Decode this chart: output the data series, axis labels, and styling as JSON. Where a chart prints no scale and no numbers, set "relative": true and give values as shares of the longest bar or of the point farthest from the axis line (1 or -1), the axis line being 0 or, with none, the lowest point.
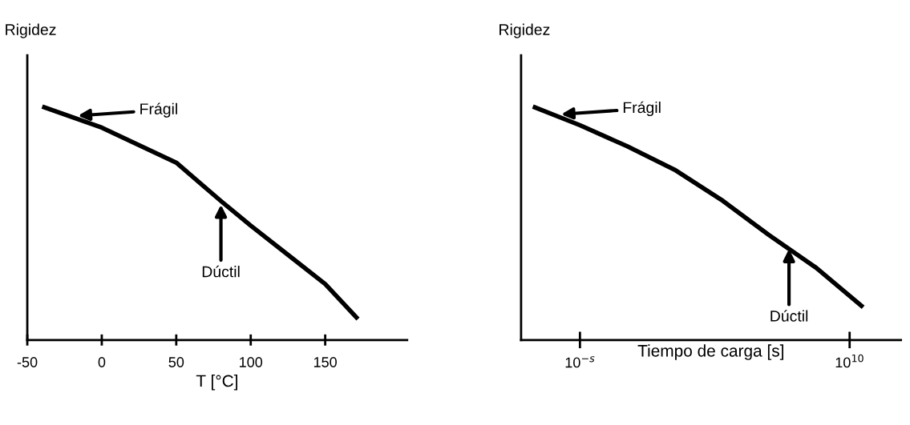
{
  "chart_data": [
    {
      "type": "line",
      "ylabel": "Rigidez",
      "xlabel": "T [°C]",
      "relative": true,
      "tick_labels": "x",
      "xlim": [
        -50,
        205
      ],
      "xticks": [
        -50,
        0,
        50,
        100,
        150
      ],
      "series": [
        {
          "color": "#000000",
          "x": [
            -40,
            0,
            50,
            81,
            100,
            128,
            150,
            172
          ],
          "values": [
            1,
            0.91,
            0.76,
            0.59,
            0.49,
            0.35,
            0.24,
            0.09
          ]
        }
      ],
      "annotations": [
        "Frágil",
        {
          "text": "Dúctil",
          "x": 80,
          "y": 0.58
        }
      ]
    },
    {
      "type": "line",
      "ylabel": "Rigidez",
      "xlabel": "Tiempo de carga [s]",
      "relative": true,
      "tick_labels": false,
      "categories": [
        null,
        null,
        null,
        null,
        null,
        null,
        null,
        null
      ],
      "series": [
        {
          "color": "#000000",
          "values": [
            1,
            0.92,
            0.83,
            0.73,
            0.6,
            0.45,
            0.31,
            0.14
          ]
        }
      ],
      "annotations": [
        "Frágil",
        {
          "text": "Dúctil",
          "y": 0.39
        },
        "10$^{−s}$",
        "10$^{10}$"
      ]
    }
  ]
}
